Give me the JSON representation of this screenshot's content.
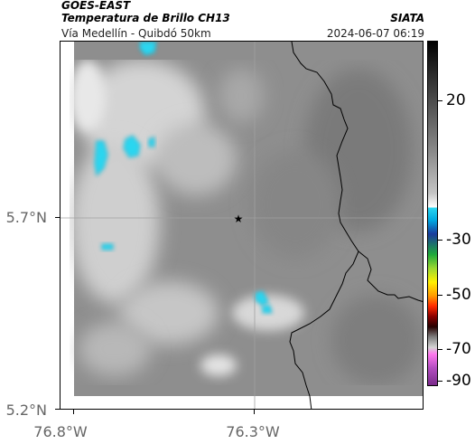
{
  "header": {
    "platform": "GOES-EAST",
    "title": "Temperatura de Brillo CH13",
    "organization": "SIATA",
    "subtitle": "Vía Medellín - Quibdó 50km",
    "datetime": "2024-06-07 06:19"
  },
  "map": {
    "lat_ticks": [
      "5.7°N",
      "5.2°N"
    ],
    "lon_ticks": [
      "76.8°W",
      "76.3°W"
    ],
    "marker_icon": "star-icon"
  },
  "colorbar": {
    "tick_labels": [
      "20",
      "-30",
      "-50",
      "-70",
      "-90"
    ]
  },
  "colors": {
    "cold_cloud": "#2ad6f0",
    "background_gray": "#8c8c8c",
    "border_line": "#000000"
  }
}
